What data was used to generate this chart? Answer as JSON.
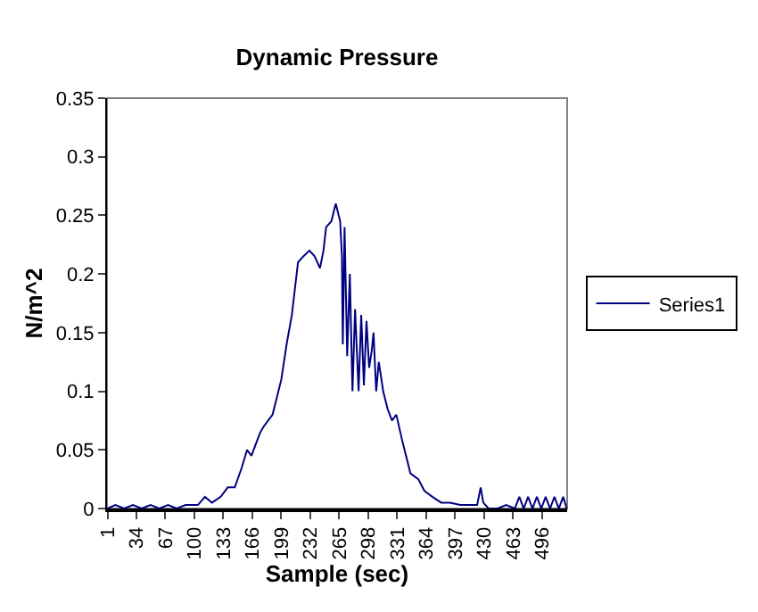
{
  "chart_data": {
    "type": "line",
    "title": "Dynamic Pressure",
    "xlabel": "Sample (sec)",
    "ylabel": "N/m^2",
    "x": [
      1,
      10,
      20,
      30,
      40,
      50,
      60,
      70,
      80,
      90,
      96,
      104,
      112,
      120,
      130,
      138,
      146,
      154,
      160,
      165,
      170,
      175,
      179,
      184,
      189,
      194,
      199,
      205,
      211,
      218,
      224,
      231,
      237,
      243,
      247,
      250,
      256,
      261,
      266,
      268,
      269,
      271,
      274,
      277,
      280,
      283,
      287,
      290,
      293,
      296,
      299,
      302,
      304,
      307,
      310,
      315,
      320,
      325,
      330,
      336,
      341,
      346,
      355,
      362,
      371,
      381,
      391,
      403,
      415,
      422,
      426,
      429,
      435,
      445,
      455,
      465,
      470,
      475,
      480,
      485,
      490,
      495,
      500,
      505,
      510,
      515,
      520,
      524
    ],
    "series": [
      {
        "name": "Series1",
        "color": "#000080",
        "values": [
          0,
          0.003,
          0,
          0.003,
          0,
          0.003,
          0,
          0.003,
          0,
          0.003,
          0.003,
          0.003,
          0.01,
          0.005,
          0.01,
          0.018,
          0.018,
          0.035,
          0.05,
          0.045,
          0.055,
          0.065,
          0.07,
          0.075,
          0.08,
          0.095,
          0.11,
          0.14,
          0.165,
          0.21,
          0.215,
          0.22,
          0.215,
          0.205,
          0.22,
          0.24,
          0.245,
          0.26,
          0.245,
          0.215,
          0.14,
          0.24,
          0.13,
          0.2,
          0.1,
          0.17,
          0.1,
          0.165,
          0.105,
          0.16,
          0.12,
          0.135,
          0.15,
          0.1,
          0.125,
          0.1,
          0.085,
          0.075,
          0.08,
          0.06,
          0.045,
          0.03,
          0.025,
          0.015,
          0.01,
          0.005,
          0.005,
          0.003,
          0.003,
          0.003,
          0.018,
          0.005,
          0,
          0,
          0.003,
          0,
          0.01,
          0,
          0.01,
          0,
          0.01,
          0,
          0.01,
          0,
          0.01,
          0,
          0.01,
          0
        ]
      }
    ],
    "xlim": [
      0.5,
      524.5
    ],
    "xticks": [
      1,
      34,
      67,
      100,
      133,
      166,
      199,
      232,
      265,
      298,
      331,
      364,
      397,
      430,
      463,
      496
    ],
    "ylim": [
      0,
      0.35
    ],
    "yticks": [
      0,
      0.05,
      0.1,
      0.15,
      0.2,
      0.25,
      0.3,
      0.35
    ],
    "grid": false,
    "legend": "right",
    "marker": "none",
    "line_style": "solid"
  }
}
